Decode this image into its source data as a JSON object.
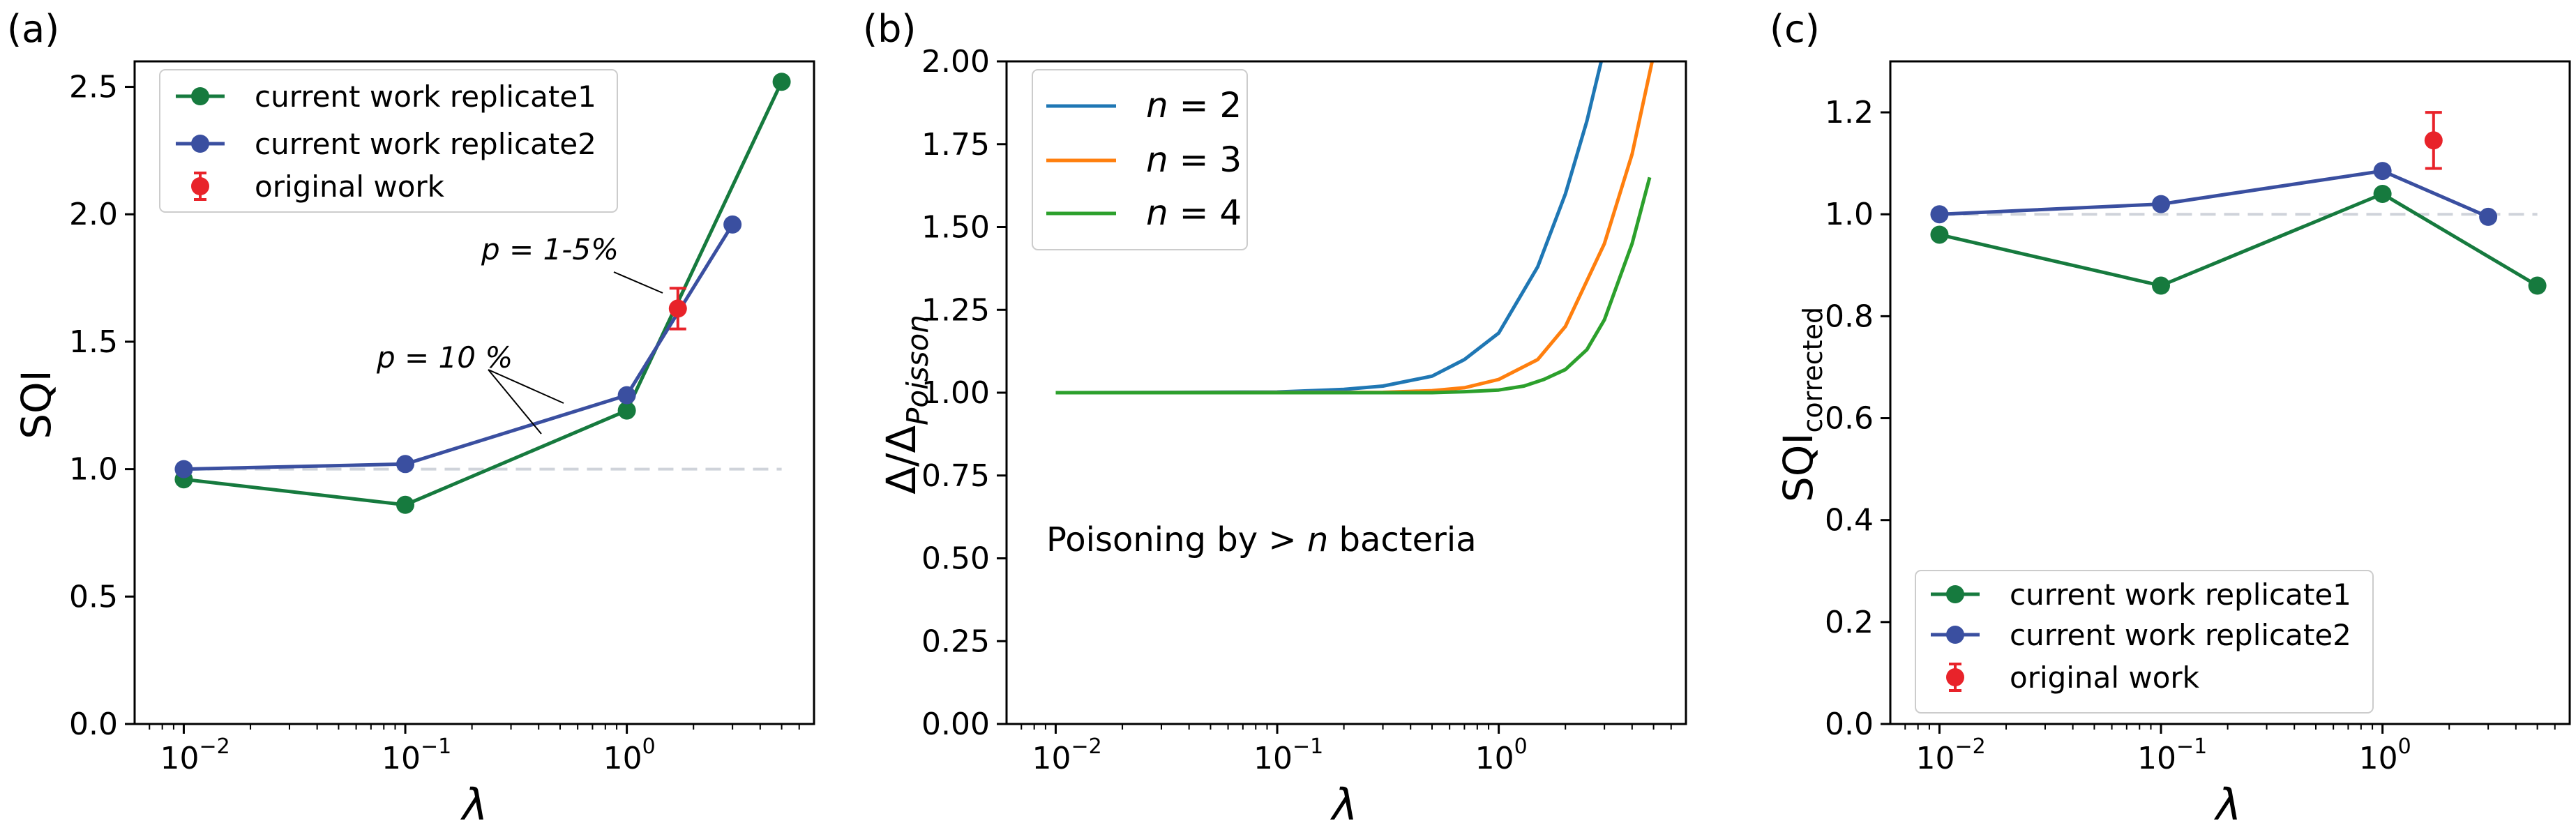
{
  "colors": {
    "green": "#167a3e",
    "blue": "#3a4fa0",
    "red": "#e8232a",
    "ref": "#cfd3da",
    "n2": "#1f77b4",
    "n3": "#ff7f0e",
    "n4": "#2ca02c"
  },
  "panels": {
    "a": {
      "label": "(a)",
      "ylabel": "SQI",
      "xlabel": "λ",
      "legend": [
        "current work replicate1",
        "current work replicate2",
        "original work"
      ],
      "annotations": [
        "p = 1-5%",
        "p = 10 %"
      ]
    },
    "b": {
      "label": "(b)",
      "ylabel_main": "Δ/Δ",
      "ylabel_sub": "Poisson",
      "xlabel": "λ",
      "legend": [
        {
          "var": "n",
          "value": "= 2"
        },
        {
          "var": "n",
          "value": "= 3"
        },
        {
          "var": "n",
          "value": "= 4"
        }
      ],
      "inset_pre": "Poisoning by  >",
      "inset_var": "n",
      "inset_post": " bacteria"
    },
    "c": {
      "label": "(c)",
      "ylabel_main": "SQI",
      "ylabel_sub": "corrected",
      "xlabel": "λ",
      "legend": [
        "current work replicate1",
        "current work replicate2",
        "original work"
      ]
    }
  },
  "chart_data": [
    {
      "type": "line",
      "panel": "a",
      "xscale": "log",
      "xlim": [
        0.006,
        7
      ],
      "ylim": [
        0,
        2.6
      ],
      "xticks": [
        0.01,
        0.1,
        1
      ],
      "xtick_labels": [
        "10",
        "10",
        "10"
      ],
      "xtick_exponents": [
        "−2",
        "−1",
        "0"
      ],
      "yticks": [
        0,
        0.5,
        1.0,
        1.5,
        2.0,
        2.5
      ],
      "ytick_labels": [
        "0.0",
        "0.5",
        "1.0",
        "1.5",
        "2.0",
        "2.5"
      ],
      "reference_line": {
        "y": 1.0,
        "x": [
          0.01,
          5
        ],
        "style": "dashed"
      },
      "series": [
        {
          "name": "current work replicate1",
          "x": [
            0.01,
            0.1,
            1,
            5
          ],
          "y": [
            0.96,
            0.86,
            1.23,
            2.52
          ]
        },
        {
          "name": "current work replicate2",
          "x": [
            0.01,
            0.1,
            1,
            3
          ],
          "y": [
            1.0,
            1.02,
            1.29,
            1.96
          ]
        },
        {
          "name": "original work",
          "x": [
            1.7
          ],
          "y": [
            1.63
          ],
          "yerr": [
            0.08
          ]
        }
      ]
    },
    {
      "type": "line",
      "panel": "b",
      "xscale": "log",
      "xlim": [
        0.006,
        7
      ],
      "ylim": [
        0,
        2.0
      ],
      "xticks": [
        0.01,
        0.1,
        1
      ],
      "xtick_labels": [
        "10",
        "10",
        "10"
      ],
      "xtick_exponents": [
        "−2",
        "−1",
        "0"
      ],
      "yticks": [
        0,
        0.25,
        0.5,
        0.75,
        1.0,
        1.25,
        1.5,
        1.75,
        2.0
      ],
      "ytick_labels": [
        "0.00",
        "0.25",
        "0.50",
        "0.75",
        "1.00",
        "1.25",
        "1.50",
        "1.75",
        "2.00"
      ],
      "series": [
        {
          "name": "n = 2",
          "x": [
            0.01,
            0.1,
            0.2,
            0.3,
            0.5,
            0.7,
            1.0,
            1.5,
            2.0,
            2.5,
            3.0
          ],
          "y": [
            1.0,
            1.002,
            1.01,
            1.02,
            1.05,
            1.1,
            1.18,
            1.38,
            1.6,
            1.82,
            2.04
          ]
        },
        {
          "name": "n = 3",
          "x": [
            0.01,
            0.3,
            0.5,
            0.7,
            1.0,
            1.5,
            2.0,
            3.0,
            4.0,
            5.0
          ],
          "y": [
            1.0,
            1.001,
            1.006,
            1.015,
            1.04,
            1.1,
            1.2,
            1.45,
            1.72,
            2.02
          ]
        },
        {
          "name": "n = 4",
          "x": [
            0.01,
            0.5,
            0.7,
            1.0,
            1.3,
            1.6,
            2.0,
            2.5,
            3.0,
            4.0,
            4.8
          ],
          "y": [
            1.0,
            1.0,
            1.003,
            1.008,
            1.02,
            1.04,
            1.07,
            1.13,
            1.22,
            1.45,
            1.65
          ]
        }
      ]
    },
    {
      "type": "line",
      "panel": "c",
      "xscale": "log",
      "xlim": [
        0.006,
        7
      ],
      "ylim": [
        0,
        1.3
      ],
      "xticks": [
        0.01,
        0.1,
        1
      ],
      "xtick_labels": [
        "10",
        "10",
        "10"
      ],
      "xtick_exponents": [
        "−2",
        "−1",
        "0"
      ],
      "yticks": [
        0,
        0.2,
        0.4,
        0.6,
        0.8,
        1.0,
        1.2
      ],
      "ytick_labels": [
        "0.0",
        "0.2",
        "0.4",
        "0.6",
        "0.8",
        "1.0",
        "1.2"
      ],
      "reference_line": {
        "y": 1.0,
        "x": [
          0.01,
          5
        ],
        "style": "dashed"
      },
      "series": [
        {
          "name": "current work replicate1",
          "x": [
            0.01,
            0.1,
            1,
            5
          ],
          "y": [
            0.96,
            0.86,
            1.04,
            0.86
          ]
        },
        {
          "name": "current work replicate2",
          "x": [
            0.01,
            0.1,
            1,
            3
          ],
          "y": [
            1.0,
            1.02,
            1.085,
            0.995
          ]
        },
        {
          "name": "original work",
          "x": [
            1.7
          ],
          "y": [
            1.145
          ],
          "yerr": [
            0.055
          ]
        }
      ]
    }
  ]
}
